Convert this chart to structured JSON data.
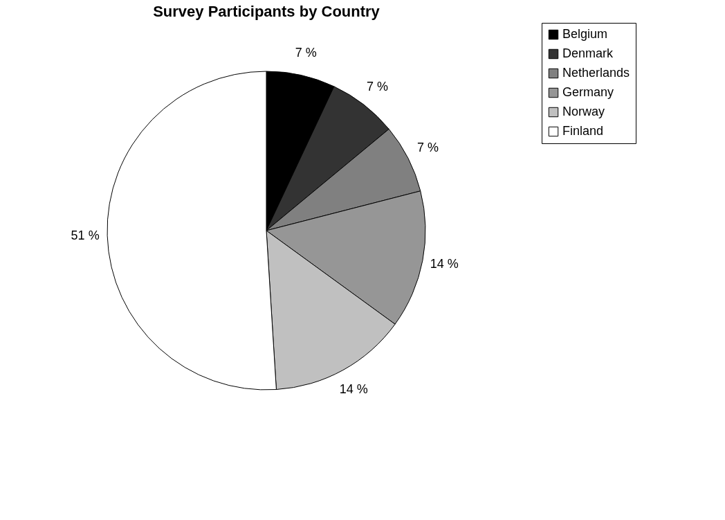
{
  "chart_data": {
    "type": "pie",
    "title": "Survey Participants by Country",
    "categories": [
      "Belgium",
      "Denmark",
      "Netherlands",
      "Germany",
      "Norway",
      "Finland"
    ],
    "values": [
      7,
      7,
      7,
      14,
      14,
      51
    ],
    "colors": [
      "#000000",
      "#333333",
      "#808080",
      "#969696",
      "#c0c0c0",
      "#ffffff"
    ],
    "value_labels": [
      "7 %",
      "7 %",
      "7 %",
      "14 %",
      "14 %",
      "51 %"
    ],
    "legend": "right"
  }
}
